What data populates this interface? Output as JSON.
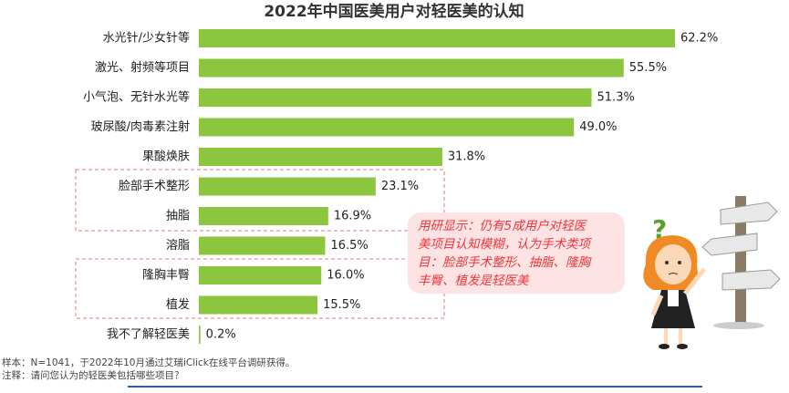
{
  "chart_data": {
    "type": "bar",
    "orientation": "horizontal",
    "title": "2022年中国医美用户对轻医美的认知",
    "categories": [
      "水光针/少女针等",
      "激光、射频等项目",
      "小气泡、无针水光等",
      "玻尿酸/肉毒素注射",
      "果酸焕肤",
      "脸部手术整形",
      "抽脂",
      "溶脂",
      "隆胸丰臀",
      "植发",
      "我不了解轻医美"
    ],
    "values": [
      62.2,
      55.5,
      51.3,
      49.0,
      31.8,
      23.1,
      16.9,
      16.5,
      16.0,
      15.5,
      0.2
    ],
    "value_labels": [
      "62.2%",
      "55.5%",
      "51.3%",
      "49.0%",
      "31.8%",
      "23.1%",
      "16.9%",
      "16.5%",
      "16.0%",
      "15.5%",
      "0.2%"
    ],
    "color": "#8cc63e",
    "annotation": [
      "用研显示：仍有5成用户对轻医",
      "美项目认知模糊，认为手术类项",
      "目：脸部手术整形、抽脂、隆胸",
      "丰臀、植发是轻医美"
    ],
    "notes": [
      "样本：N=1041，于2022年10月通过艾瑞iClick在线平台调研获得。",
      "注释：请问您认为的轻医美包括哪些项目？"
    ]
  }
}
